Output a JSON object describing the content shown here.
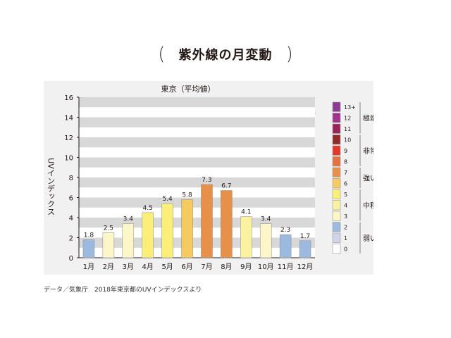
{
  "title": "紫外線の月変動",
  "title_open": "(",
  "title_close": ")",
  "source": "データ／気象庁　2018年東京都のUVインデックスより",
  "chart_data": {
    "type": "bar",
    "title": "東京（平均値）",
    "annotation": "2018",
    "xlabel": "",
    "ylabel": "UVインデックス",
    "ylim": [
      0,
      16
    ],
    "yticks": [
      0,
      2,
      4,
      6,
      8,
      10,
      12,
      14,
      16
    ],
    "grid": "alternating horizontal bands",
    "categories": [
      "1月",
      "2月",
      "3月",
      "4月",
      "5月",
      "6月",
      "7月",
      "8月",
      "9月",
      "10月",
      "11月",
      "12月"
    ],
    "values": [
      1.8,
      2.5,
      3.4,
      4.5,
      5.4,
      5.8,
      7.3,
      6.7,
      4.1,
      3.4,
      2.3,
      1.7
    ],
    "value_labels": [
      "1.8",
      "2.5",
      "3.4",
      "4.5",
      "5.4",
      "5.8",
      "7.3",
      "6.7",
      "4.1",
      "3.4",
      "2.3",
      "1.7"
    ],
    "bar_colors": [
      "#9cb9df",
      "#fdf6c9",
      "#fdf6c9",
      "#fbef7a",
      "#fbef7a",
      "#f5ca60",
      "#e6904a",
      "#e6904a",
      "#fbf2a0",
      "#fdf6c9",
      "#9cb9df",
      "#9cb9df"
    ],
    "legend": {
      "position": "right",
      "levels": [
        {
          "label": "13+",
          "color": "#8e3c93"
        },
        {
          "label": "12",
          "color": "#a2338f"
        },
        {
          "label": "11",
          "color": "#9b2459"
        },
        {
          "label": "10",
          "color": "#932a2a"
        },
        {
          "label": "9",
          "color": "#e1392c"
        },
        {
          "label": "8",
          "color": "#e5723f"
        },
        {
          "label": "7",
          "color": "#e6904a"
        },
        {
          "label": "6",
          "color": "#f5ca60"
        },
        {
          "label": "5",
          "color": "#fbef7a"
        },
        {
          "label": "4",
          "color": "#fbf2a0"
        },
        {
          "label": "3",
          "color": "#fdf6c9"
        },
        {
          "label": "2",
          "color": "#9cb9df"
        },
        {
          "label": "1",
          "color": "#d3d3e8"
        },
        {
          "label": "0",
          "color": "#ffffff"
        }
      ],
      "groups": [
        {
          "label": "極端に強い",
          "from": 0,
          "to": 2
        },
        {
          "label": "非常に強い",
          "from": 3,
          "to": 5
        },
        {
          "label": "強い",
          "from": 6,
          "to": 7
        },
        {
          "label": "中程度",
          "from": 8,
          "to": 10
        },
        {
          "label": "弱い",
          "from": 11,
          "to": 13
        }
      ]
    }
  }
}
